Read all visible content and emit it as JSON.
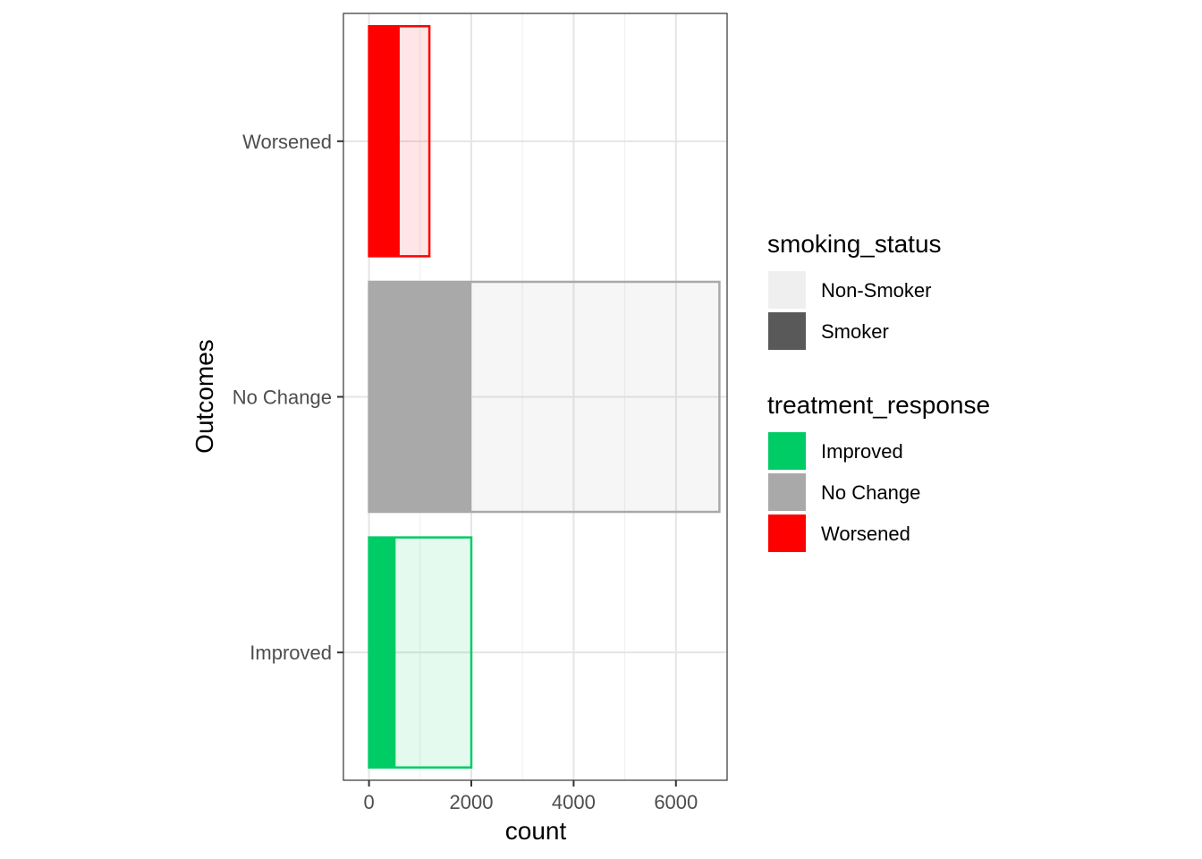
{
  "chart_data": {
    "type": "bar",
    "orientation": "horizontal",
    "bar_mode": "overlay",
    "xlabel": "count",
    "ylabel": "Outcomes",
    "xlim": [
      -500,
      7000
    ],
    "x_ticks": [
      0,
      2000,
      4000,
      6000
    ],
    "categories": [
      "Improved",
      "No Change",
      "Worsened"
    ],
    "colors": {
      "Improved": "#00cc66",
      "No Change": "#a9a9a9",
      "Worsened": "#ff0000"
    },
    "series": [
      {
        "name": "Non-Smoker",
        "values": [
          2000,
          6850,
          1180
        ]
      },
      {
        "name": "Smoker",
        "values": [
          520,
          2000,
          600
        ]
      }
    ],
    "grid": true,
    "legend_placement": "right",
    "legends": [
      {
        "title": "smoking_status",
        "items": [
          {
            "label": "Non-Smoker",
            "color": "#efefef"
          },
          {
            "label": "Smoker",
            "color": "#595959"
          }
        ]
      },
      {
        "title": "treatment_response",
        "items": [
          {
            "label": "Improved",
            "color": "#00cc66"
          },
          {
            "label": "No Change",
            "color": "#a9a9a9"
          },
          {
            "label": "Worsened",
            "color": "#ff0000"
          }
        ]
      }
    ]
  }
}
